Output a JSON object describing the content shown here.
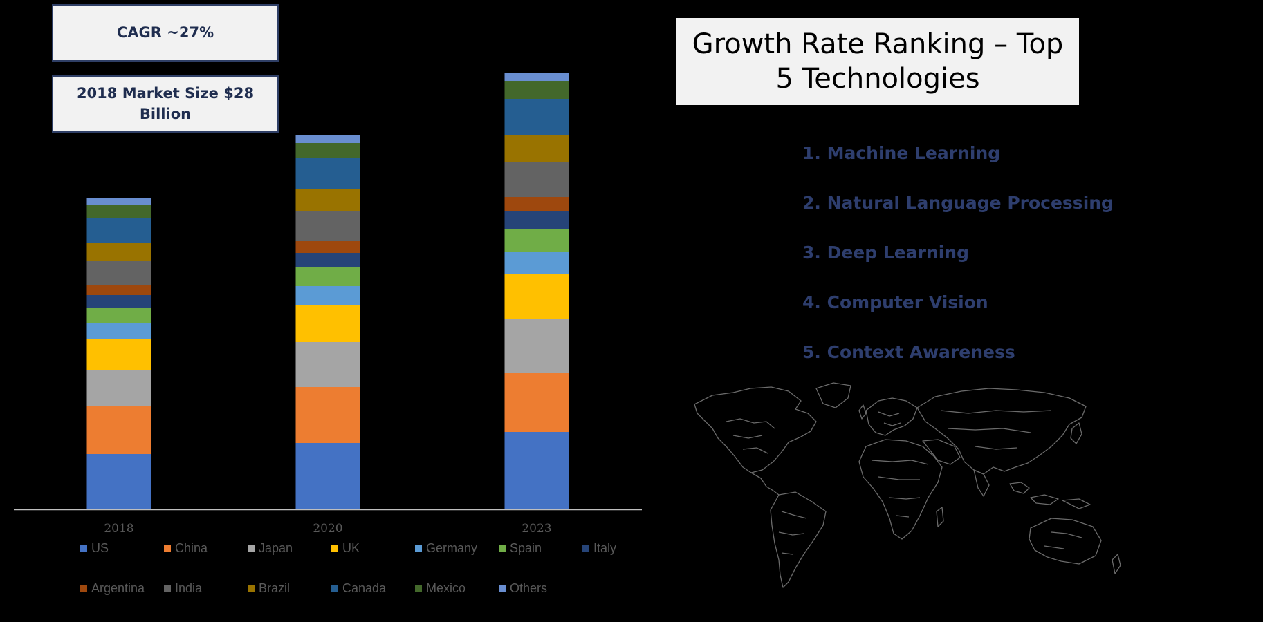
{
  "info": {
    "cagr": "CAGR ~27%",
    "market_size": "2018 Market Size $28 Billion"
  },
  "ranking": {
    "title": "Growth Rate Ranking – Top 5 Technologies",
    "items": [
      "1. Machine Learning",
      "2. Natural Language Processing",
      "3. Deep Learning",
      "4. Computer Vision",
      "5. Context Awareness"
    ]
  },
  "map": {
    "icon": "world-map-icon"
  },
  "colors": {
    "background": "#000000",
    "axis": "#bfbfbf",
    "ranking_text": "#2e3e6e"
  },
  "chart_data": {
    "type": "bar",
    "stacked": true,
    "categories": [
      "2018",
      "2020",
      "2023"
    ],
    "series": [
      {
        "name": "US",
        "color": "#4472c4",
        "values": [
          80,
          96,
          112
        ]
      },
      {
        "name": "China",
        "color": "#ed7d31",
        "values": [
          69,
          81,
          86
        ]
      },
      {
        "name": "Japan",
        "color": "#a5a5a5",
        "values": [
          52,
          65,
          78
        ]
      },
      {
        "name": "UK",
        "color": "#ffc000",
        "values": [
          46,
          54,
          64
        ]
      },
      {
        "name": "Germany",
        "color": "#5b9bd5",
        "values": [
          22,
          27,
          33
        ]
      },
      {
        "name": "Spain",
        "color": "#70ad47",
        "values": [
          23,
          27,
          32
        ]
      },
      {
        "name": "Italy",
        "color": "#264478",
        "values": [
          18,
          21,
          26
        ]
      },
      {
        "name": "Argentina",
        "color": "#9e480e",
        "values": [
          14,
          18,
          21
        ]
      },
      {
        "name": "India",
        "color": "#636363",
        "values": [
          35,
          43,
          51
        ]
      },
      {
        "name": "Brazil",
        "color": "#997300",
        "values": [
          27,
          32,
          39
        ]
      },
      {
        "name": "Canada",
        "color": "#255e91",
        "values": [
          36,
          44,
          52
        ]
      },
      {
        "name": "Mexico",
        "color": "#43682b",
        "values": [
          19,
          22,
          26
        ]
      },
      {
        "name": "Others",
        "color": "#698ed0",
        "values": [
          9,
          11,
          12
        ]
      }
    ],
    "legend_position": "bottom",
    "grid": false,
    "ylim": [
      0,
      640
    ]
  }
}
